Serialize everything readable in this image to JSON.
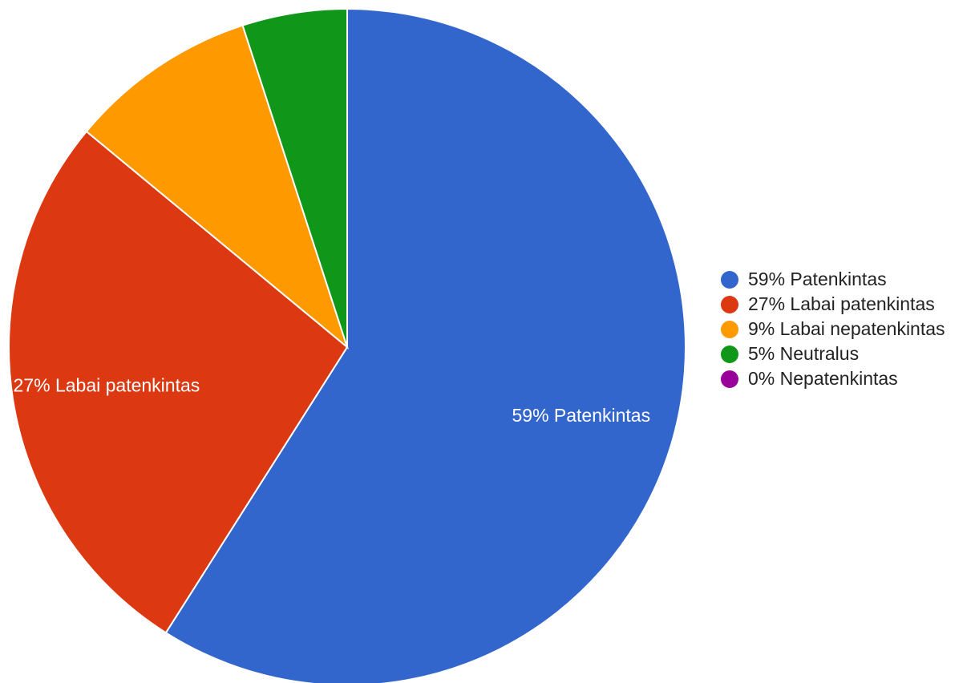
{
  "chart_data": {
    "type": "pie",
    "title": "",
    "slices": [
      {
        "label": "59% Patenkintas",
        "value": 59,
        "color": "#3366cc"
      },
      {
        "label": "27% Labai patenkintas",
        "value": 27,
        "color": "#dc3912"
      },
      {
        "label": "9% Labai nepatenkintas",
        "value": 9,
        "color": "#ff9900"
      },
      {
        "label": "5% Neutralus",
        "value": 5,
        "color": "#109618"
      },
      {
        "label": "0% Nepatenkintas",
        "value": 0,
        "color": "#990099"
      }
    ],
    "slice_labels_shown": [
      "59% Patenkintas",
      "27% Labai patenkintas"
    ],
    "legend": {
      "placement": "right",
      "items": [
        {
          "label": "59% Patenkintas",
          "color": "#3366cc"
        },
        {
          "label": "27% Labai patenkintas",
          "color": "#dc3912"
        },
        {
          "label": "9% Labai nepatenkintas",
          "color": "#ff9900"
        },
        {
          "label": "5% Neutralus",
          "color": "#109618"
        },
        {
          "label": "0% Nepatenkintas",
          "color": "#990099"
        }
      ]
    }
  }
}
